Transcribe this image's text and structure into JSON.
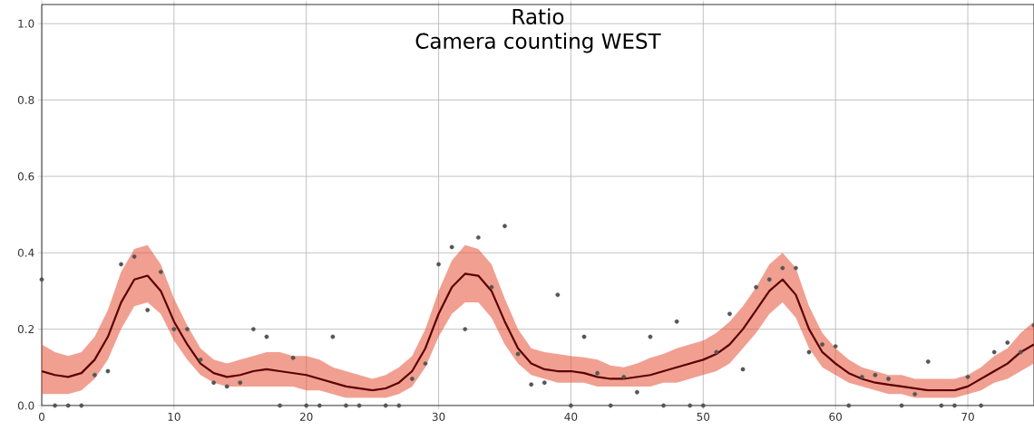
{
  "chart_data": {
    "type": "line",
    "title": "Ratio",
    "subtitle": "Camera counting WEST",
    "xlim": [
      0,
      75
    ],
    "ylim": [
      0,
      1.05
    ],
    "xticks": [
      0,
      10,
      20,
      30,
      40,
      50,
      60,
      70
    ],
    "yticks": [
      {
        "value": 0,
        "label": "0.0"
      },
      {
        "value": 0.2,
        "label": "0.2"
      },
      {
        "value": 0.4,
        "label": "0.4"
      },
      {
        "value": 0.6,
        "label": "0.6"
      },
      {
        "value": 0.8,
        "label": "0.8"
      },
      {
        "value": 1.0,
        "label": "1.0"
      }
    ],
    "grid": true,
    "series": [
      {
        "color": "#5a0000",
        "marker": "none",
        "x": [
          0,
          1,
          2,
          3,
          4,
          5,
          6,
          7,
          8,
          9,
          10,
          11,
          12,
          13,
          14,
          15,
          16,
          17,
          18,
          19,
          20,
          21,
          22,
          23,
          24,
          25,
          26,
          27,
          28,
          29,
          30,
          31,
          32,
          33,
          34,
          35,
          36,
          37,
          38,
          39,
          40,
          41,
          42,
          43,
          44,
          45,
          46,
          47,
          48,
          49,
          50,
          51,
          52,
          53,
          54,
          55,
          56,
          57,
          58,
          59,
          60,
          61,
          62,
          63,
          64,
          65,
          66,
          67,
          68,
          69,
          70,
          71,
          72,
          73,
          74,
          75
        ],
        "values": [
          0.09,
          0.08,
          0.075,
          0.085,
          0.12,
          0.18,
          0.27,
          0.33,
          0.34,
          0.3,
          0.22,
          0.16,
          0.11,
          0.085,
          0.075,
          0.08,
          0.09,
          0.095,
          0.09,
          0.085,
          0.08,
          0.07,
          0.06,
          0.05,
          0.045,
          0.04,
          0.045,
          0.06,
          0.09,
          0.15,
          0.24,
          0.31,
          0.345,
          0.34,
          0.3,
          0.22,
          0.15,
          0.11,
          0.095,
          0.09,
          0.09,
          0.085,
          0.075,
          0.07,
          0.07,
          0.075,
          0.08,
          0.09,
          0.1,
          0.11,
          0.12,
          0.135,
          0.16,
          0.2,
          0.25,
          0.3,
          0.33,
          0.29,
          0.2,
          0.14,
          0.11,
          0.085,
          0.07,
          0.06,
          0.055,
          0.05,
          0.045,
          0.04,
          0.04,
          0.04,
          0.05,
          0.07,
          0.09,
          0.11,
          0.14,
          0.16
        ],
        "lower": [
          0.03,
          0.03,
          0.03,
          0.04,
          0.07,
          0.12,
          0.2,
          0.26,
          0.27,
          0.24,
          0.17,
          0.12,
          0.08,
          0.06,
          0.05,
          0.05,
          0.05,
          0.05,
          0.05,
          0.05,
          0.04,
          0.04,
          0.03,
          0.02,
          0.02,
          0.02,
          0.02,
          0.03,
          0.05,
          0.1,
          0.18,
          0.24,
          0.27,
          0.27,
          0.23,
          0.16,
          0.11,
          0.08,
          0.07,
          0.06,
          0.06,
          0.06,
          0.05,
          0.05,
          0.05,
          0.05,
          0.05,
          0.06,
          0.06,
          0.07,
          0.08,
          0.09,
          0.11,
          0.15,
          0.19,
          0.24,
          0.27,
          0.23,
          0.15,
          0.1,
          0.08,
          0.06,
          0.05,
          0.04,
          0.03,
          0.03,
          0.02,
          0.02,
          0.02,
          0.02,
          0.03,
          0.04,
          0.06,
          0.07,
          0.09,
          0.11
        ],
        "upper": [
          0.16,
          0.14,
          0.13,
          0.14,
          0.18,
          0.25,
          0.35,
          0.41,
          0.42,
          0.37,
          0.28,
          0.21,
          0.15,
          0.12,
          0.11,
          0.12,
          0.13,
          0.14,
          0.14,
          0.13,
          0.13,
          0.12,
          0.1,
          0.09,
          0.08,
          0.07,
          0.08,
          0.1,
          0.13,
          0.2,
          0.3,
          0.38,
          0.42,
          0.41,
          0.37,
          0.28,
          0.2,
          0.15,
          0.14,
          0.135,
          0.13,
          0.126,
          0.12,
          0.105,
          0.1,
          0.11,
          0.125,
          0.135,
          0.15,
          0.16,
          0.17,
          0.19,
          0.22,
          0.26,
          0.31,
          0.37,
          0.4,
          0.36,
          0.26,
          0.19,
          0.15,
          0.12,
          0.1,
          0.09,
          0.08,
          0.08,
          0.07,
          0.07,
          0.07,
          0.07,
          0.08,
          0.1,
          0.13,
          0.15,
          0.19,
          0.22
        ]
      },
      {
        "type": "scatter",
        "color": "#555555",
        "marker": "circle",
        "x": [
          0,
          1,
          2,
          3,
          4,
          5,
          6,
          7,
          8,
          9,
          10,
          11,
          12,
          13,
          14,
          15,
          16,
          17,
          18,
          19,
          20,
          21,
          22,
          23,
          24,
          26,
          27,
          28,
          29,
          30,
          31,
          32,
          33,
          34,
          35,
          36,
          37,
          38,
          39,
          40,
          41,
          42,
          43,
          44,
          45,
          46,
          47,
          48,
          49,
          50,
          51,
          52,
          53,
          54,
          55,
          56,
          57,
          58,
          59,
          60,
          61,
          62,
          63,
          64,
          65,
          66,
          67,
          68,
          69,
          70,
          71,
          72,
          73,
          74,
          75
        ],
        "values": [
          0.33,
          0,
          0,
          0,
          0.08,
          0.09,
          0.37,
          0.39,
          0.25,
          0.35,
          0.2,
          0.2,
          0.12,
          0.06,
          0.05,
          0.06,
          0.2,
          0.18,
          0,
          0.125,
          0,
          0,
          0.18,
          0,
          0,
          0,
          0,
          0.07,
          0.11,
          0.37,
          0.415,
          0.2,
          0.44,
          0.31,
          0.47,
          0.135,
          0.055,
          0.06,
          0.29,
          0,
          0.18,
          0.085,
          0,
          0.075,
          0.035,
          0.18,
          0,
          0.22,
          0,
          0,
          0.14,
          0.24,
          0.095,
          0.31,
          0.33,
          0.36,
          0.36,
          0.14,
          0.16,
          0.155,
          0,
          0.075,
          0.08,
          0.07,
          0,
          0.03,
          0.115,
          0,
          0,
          0.075,
          0,
          0.14,
          0.165,
          0.14,
          0.21
        ]
      }
    ]
  }
}
